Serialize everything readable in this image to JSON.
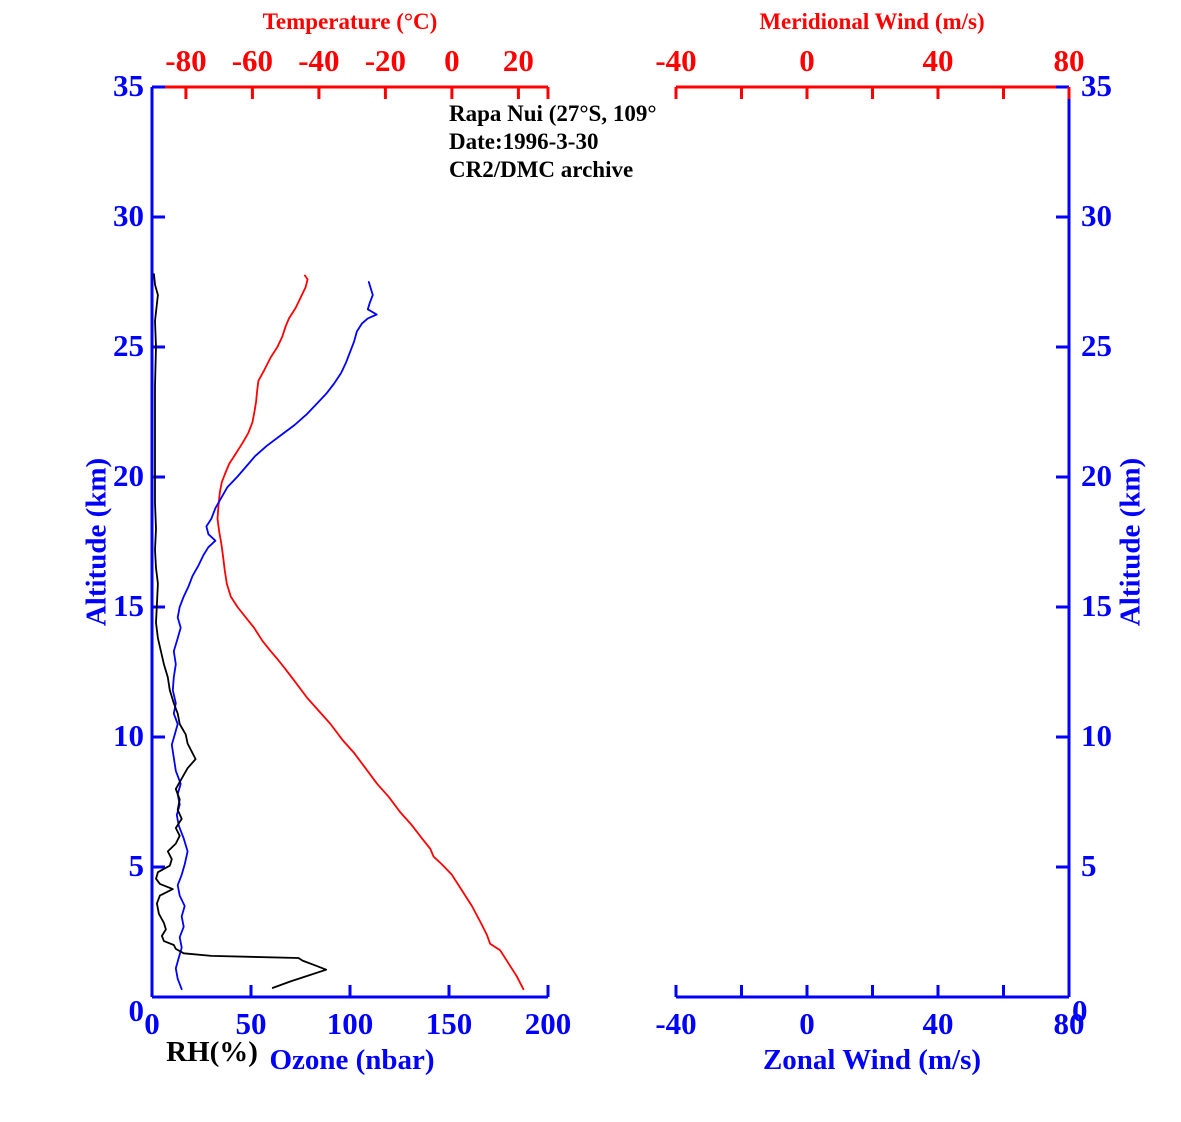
{
  "colors": {
    "red": "#ff0000",
    "blue": "#0000ff",
    "black": "#000000",
    "background": "#ffffff"
  },
  "annotation": {
    "station": "Rapa Nui (27°S, 109°",
    "date": "Date:1996-3-30",
    "archive": "CR2/DMC archive"
  },
  "left_panel": {
    "top_axis_title": "Temperature (°C)",
    "bottom_axis_title_rh": "RH(%)",
    "bottom_axis_title_ozone": "Ozone (nbar)",
    "side_axis_title": "Altitude (km)",
    "axes": {
      "temperature": {
        "range": [
          -90.2,
          28.9
        ],
        "ticks": [
          -80,
          -60,
          -40,
          -20,
          0,
          20
        ],
        "unit": "°C"
      },
      "concentration": {
        "range": [
          0,
          200
        ],
        "ticks": [
          0,
          50,
          100,
          150,
          200
        ]
      },
      "altitude": {
        "range": [
          0,
          35
        ],
        "ticks": [
          0,
          5,
          10,
          15,
          20,
          25,
          30,
          35
        ],
        "unit": "km"
      }
    }
  },
  "right_panel": {
    "top_axis_title": "Meridional Wind (m/s)",
    "bottom_axis_title": "Zonal Wind (m/s)",
    "side_axis_title": "Altitude (km)",
    "axes": {
      "wind": {
        "range": [
          -40,
          80
        ],
        "ticks": [
          -40,
          -20,
          0,
          20,
          40,
          60,
          80
        ],
        "labeled_ticks": [
          -40,
          0,
          40,
          80
        ]
      },
      "altitude": {
        "range": [
          0,
          35
        ],
        "ticks": [
          0,
          5,
          10,
          15,
          20,
          25,
          30,
          35
        ]
      }
    }
  },
  "chart_data": {
    "type": "line",
    "title": "Ozonesonde vertical profiles, Rapa Nui (27°S, 109°), 1996-3-30, CR2/DMC archive",
    "ylabel": "Altitude (km)",
    "ylim": [
      0,
      35
    ],
    "y_ticks": [
      0,
      5,
      10,
      15,
      20,
      25,
      30,
      35
    ],
    "grid": false,
    "legend": "none",
    "panels": [
      {
        "name": "left",
        "top_xlabel": "Temperature (°C)",
        "top_xlim": [
          -90.2,
          28.9
        ],
        "top_xticks": [
          -80,
          -60,
          -40,
          -20,
          0,
          20
        ],
        "bottom_xlabel": "RH(%) / Ozone (nbar)",
        "bottom_xlim": [
          0,
          200
        ],
        "bottom_xticks": [
          0,
          50,
          100,
          150,
          200
        ],
        "series": [
          {
            "name": "Temperature",
            "axis": "temperature",
            "units": "°C",
            "color": "#ff0000",
            "points": [
              [
                21.5,
                0.3
              ],
              [
                19.5,
                0.8
              ],
              [
                17,
                1.3
              ],
              [
                14.5,
                1.8
              ],
              [
                11.5,
                2.05
              ],
              [
                10.5,
                2.4
              ],
              [
                8.5,
                2.9
              ],
              [
                6,
                3.5
              ],
              [
                3,
                4.1
              ],
              [
                0,
                4.7
              ],
              [
                -3,
                5.1
              ],
              [
                -5.5,
                5.4
              ],
              [
                -6.5,
                5.7
              ],
              [
                -9,
                6.1
              ],
              [
                -12,
                6.6
              ],
              [
                -15.5,
                7.1
              ],
              [
                -19,
                7.7
              ],
              [
                -22.5,
                8.2
              ],
              [
                -26,
                8.8
              ],
              [
                -29.5,
                9.4
              ],
              [
                -33,
                9.9
              ],
              [
                -36.5,
                10.5
              ],
              [
                -40,
                11
              ],
              [
                -43.5,
                11.5
              ],
              [
                -47,
                12.1
              ],
              [
                -50,
                12.6
              ],
              [
                -52.5,
                13
              ],
              [
                -54.5,
                13.3
              ],
              [
                -57,
                13.7
              ],
              [
                -59.5,
                14.2
              ],
              [
                -62,
                14.6
              ],
              [
                -64.5,
                15
              ],
              [
                -66.5,
                15.4
              ],
              [
                -67.7,
                15.9
              ],
              [
                -68.3,
                16.4
              ],
              [
                -68.8,
                16.9
              ],
              [
                -69.3,
                17.4
              ],
              [
                -70,
                17.9
              ],
              [
                -70.5,
                18.4
              ],
              [
                -70.2,
                18.9
              ],
              [
                -69.8,
                19.4
              ],
              [
                -69.2,
                19.8
              ],
              [
                -68.3,
                20.1
              ],
              [
                -67,
                20.5
              ],
              [
                -65,
                20.9
              ],
              [
                -63,
                21.3
              ],
              [
                -61.2,
                21.7
              ],
              [
                -60,
                22.1
              ],
              [
                -59.4,
                22.5
              ],
              [
                -58.9,
                22.9
              ],
              [
                -58.6,
                23.3
              ],
              [
                -58.2,
                23.7
              ],
              [
                -56.5,
                24.1
              ],
              [
                -54.5,
                24.6
              ],
              [
                -52.5,
                25
              ],
              [
                -51,
                25.4
              ],
              [
                -50,
                25.8
              ],
              [
                -49,
                26.1
              ],
              [
                -47,
                26.5
              ],
              [
                -45.5,
                26.9
              ],
              [
                -44,
                27.3
              ],
              [
                -43.4,
                27.6
              ],
              [
                -44.2,
                27.75
              ]
            ]
          },
          {
            "name": "Ozone",
            "axis": "concentration",
            "units": "nbar",
            "color": "#0000ff",
            "points": [
              [
                15,
                0.3
              ],
              [
                13,
                0.7
              ],
              [
                12,
                1.1
              ],
              [
                13.5,
                1.5
              ],
              [
                15,
                1.9
              ],
              [
                14,
                2.3
              ],
              [
                16,
                2.7
              ],
              [
                15,
                3.1
              ],
              [
                16.5,
                3.5
              ],
              [
                14,
                3.9
              ],
              [
                13,
                4.3
              ],
              [
                15,
                4.7
              ],
              [
                16.5,
                5.1
              ],
              [
                18,
                5.6
              ],
              [
                16,
                6.1
              ],
              [
                13.5,
                6.6
              ],
              [
                12.5,
                7
              ],
              [
                14,
                7.4
              ],
              [
                13,
                7.8
              ],
              [
                14.5,
                8.2
              ],
              [
                12,
                8.7
              ],
              [
                11,
                9.2
              ],
              [
                10,
                9.7
              ],
              [
                11.5,
                10.1
              ],
              [
                13,
                10.5
              ],
              [
                11,
                10.9
              ],
              [
                12,
                11.3
              ],
              [
                10.5,
                11.8
              ],
              [
                11,
                12.3
              ],
              [
                12,
                12.8
              ],
              [
                11,
                13.3
              ],
              [
                13,
                13.8
              ],
              [
                14.5,
                14.2
              ],
              [
                13,
                14.6
              ],
              [
                14,
                15
              ],
              [
                16,
                15.4
              ],
              [
                18.5,
                15.8
              ],
              [
                20.5,
                16.2
              ],
              [
                23.5,
                16.6
              ],
              [
                26,
                17
              ],
              [
                28.5,
                17.3
              ],
              [
                32,
                17.55
              ],
              [
                28.5,
                17.8
              ],
              [
                27.5,
                18.1
              ],
              [
                30,
                18.4
              ],
              [
                32,
                18.8
              ],
              [
                35,
                19.2
              ],
              [
                38,
                19.6
              ],
              [
                43,
                20
              ],
              [
                47.5,
                20.4
              ],
              [
                52,
                20.8
              ],
              [
                58,
                21.2
              ],
              [
                65,
                21.6
              ],
              [
                72,
                22
              ],
              [
                78,
                22.4
              ],
              [
                83,
                22.8
              ],
              [
                88,
                23.2
              ],
              [
                92,
                23.6
              ],
              [
                95.5,
                24
              ],
              [
                98,
                24.4
              ],
              [
                100,
                24.8
              ],
              [
                102,
                25.2
              ],
              [
                103.5,
                25.6
              ],
              [
                106,
                25.9
              ],
              [
                109,
                26.1
              ],
              [
                113.5,
                26.25
              ],
              [
                109,
                26.45
              ],
              [
                110,
                26.7
              ],
              [
                111.5,
                27
              ],
              [
                110.5,
                27.25
              ],
              [
                109.5,
                27.5
              ]
            ]
          },
          {
            "name": "RH",
            "axis": "concentration",
            "units": "%",
            "color": "#000000",
            "points": [
              [
                61,
                0.35
              ],
              [
                70,
                0.6
              ],
              [
                80,
                0.85
              ],
              [
                88,
                1.05
              ],
              [
                83,
                1.2
              ],
              [
                76,
                1.4
              ],
              [
                74,
                1.5
              ],
              [
                30,
                1.58
              ],
              [
                16,
                1.68
              ],
              [
                12,
                1.85
              ],
              [
                11,
                2
              ],
              [
                6,
                2.15
              ],
              [
                5,
                2.35
              ],
              [
                7,
                2.6
              ],
              [
                6,
                2.85
              ],
              [
                3.5,
                3.2
              ],
              [
                2.5,
                3.6
              ],
              [
                4,
                3.9
              ],
              [
                10.5,
                4.15
              ],
              [
                4,
                4.35
              ],
              [
                2,
                4.55
              ],
              [
                3,
                4.8
              ],
              [
                9,
                5.05
              ],
              [
                10,
                5.3
              ],
              [
                8,
                5.6
              ],
              [
                12,
                5.9
              ],
              [
                14,
                6.2
              ],
              [
                12,
                6.5
              ],
              [
                15,
                6.85
              ],
              [
                13,
                7.2
              ],
              [
                14,
                7.6
              ],
              [
                12,
                8
              ],
              [
                15,
                8.4
              ],
              [
                18,
                8.8
              ],
              [
                22,
                9.15
              ],
              [
                20,
                9.45
              ],
              [
                18,
                9.75
              ],
              [
                17,
                10.1
              ],
              [
                14,
                10.5
              ],
              [
                13,
                10.9
              ],
              [
                11,
                11.3
              ],
              [
                9,
                11.8
              ],
              [
                8,
                12.3
              ],
              [
                6,
                12.8
              ],
              [
                4.5,
                13.3
              ],
              [
                3,
                13.8
              ],
              [
                2,
                14.4
              ],
              [
                2.5,
                15.1
              ],
              [
                3,
                15.9
              ],
              [
                2,
                16.5
              ],
              [
                1.5,
                17.2
              ],
              [
                2,
                18
              ],
              [
                1.5,
                19
              ],
              [
                1.5,
                20.5
              ],
              [
                1.5,
                22
              ],
              [
                1.5,
                23.5
              ],
              [
                2,
                25
              ],
              [
                1.5,
                26
              ],
              [
                3,
                27
              ],
              [
                1.5,
                27.4
              ],
              [
                1,
                27.8
              ]
            ]
          }
        ]
      },
      {
        "name": "right",
        "top_xlabel": "Meridional Wind (m/s)",
        "bottom_xlabel": "Zonal Wind (m/s)",
        "top_xlim": [
          -40,
          80
        ],
        "bottom_xlim": [
          -40,
          80
        ],
        "top_xticks": [
          -40,
          -20,
          0,
          20,
          40,
          60,
          80
        ],
        "bottom_xticks": [
          -40,
          -20,
          0,
          20,
          40,
          60,
          80
        ],
        "series": []
      }
    ]
  }
}
